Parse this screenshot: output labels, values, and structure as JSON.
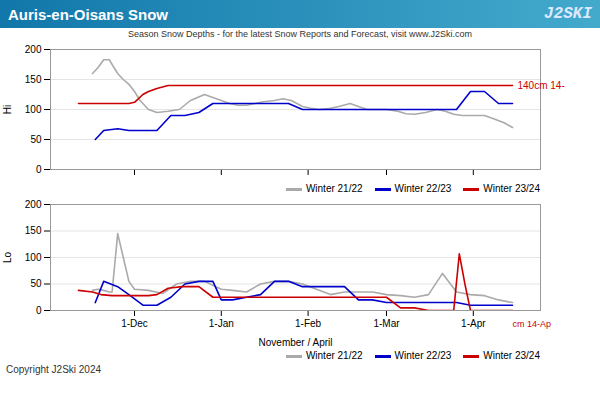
{
  "chart_data": [
    {
      "type": "line",
      "title": "Auris-en-Oisans Snow",
      "subtitle": "Season Snow Depths - for the latest Snow Reports and Forecast, visit www.J2Ski.com",
      "ylabel": "Hi",
      "annotations": [
        "140cm 14-",
        "J2SKI"
      ],
      "xlim": [
        0,
        175
      ],
      "xticks": [
        {
          "value": 30,
          "label": "1-Dec"
        },
        {
          "value": 61,
          "label": "1-Jan"
        },
        {
          "value": 92,
          "label": "1-Feb"
        },
        {
          "value": 120,
          "label": "1-Mar"
        },
        {
          "value": 151,
          "label": "1-Apr"
        }
      ],
      "ylim": [
        0,
        200
      ],
      "yticks": [
        0,
        50,
        100,
        150,
        200
      ],
      "grid": true,
      "legend": "lower right",
      "tick_labels": "y",
      "series": [
        {
          "name": "Winter 21/22",
          "color": "#aaaaaa",
          "x": [
            15,
            17,
            19,
            21,
            22,
            24,
            26,
            28,
            30,
            32,
            35,
            38,
            42,
            46,
            50,
            55,
            58,
            61,
            64,
            67,
            70,
            73,
            76,
            80,
            83,
            86,
            90,
            93,
            96,
            100,
            103,
            107,
            110,
            113,
            117,
            120,
            124,
            127,
            130,
            134,
            138,
            141,
            144,
            147,
            151,
            155,
            158,
            162,
            165
          ],
          "values": [
            160,
            170,
            183,
            183,
            175,
            160,
            150,
            142,
            130,
            115,
            100,
            95,
            97,
            100,
            115,
            125,
            120,
            115,
            110,
            107,
            107,
            110,
            113,
            115,
            118,
            115,
            105,
            102,
            100,
            102,
            105,
            110,
            105,
            100,
            100,
            100,
            97,
            93,
            92,
            95,
            100,
            97,
            92,
            90,
            90,
            90,
            85,
            78,
            70
          ]
        },
        {
          "name": "Winter 22/23",
          "color": "#0000cc",
          "x": [
            16,
            19,
            24,
            28,
            33,
            38,
            43,
            48,
            53,
            58,
            61,
            65,
            70,
            75,
            80,
            85,
            90,
            95,
            100,
            105,
            110,
            115,
            120,
            125,
            130,
            135,
            140,
            145,
            150,
            155,
            160,
            165
          ],
          "values": [
            50,
            65,
            68,
            65,
            65,
            65,
            90,
            90,
            95,
            110,
            110,
            110,
            110,
            110,
            110,
            110,
            100,
            100,
            100,
            100,
            100,
            100,
            100,
            100,
            100,
            100,
            100,
            100,
            130,
            130,
            110,
            110
          ]
        },
        {
          "name": "Winter 23/24",
          "color": "#cc0000",
          "x": [
            10,
            15,
            20,
            25,
            28,
            30,
            33,
            35,
            38,
            42,
            47,
            53,
            58,
            61,
            65,
            70,
            75,
            80,
            85,
            90,
            95,
            100,
            105,
            110,
            115,
            120,
            125,
            130,
            135,
            140,
            145,
            151,
            155,
            160,
            165
          ],
          "values": [
            110,
            110,
            110,
            110,
            110,
            112,
            125,
            130,
            135,
            140,
            140,
            140,
            140,
            140,
            140,
            140,
            140,
            140,
            140,
            140,
            140,
            140,
            140,
            140,
            140,
            140,
            140,
            140,
            140,
            140,
            140,
            140,
            140,
            140,
            140
          ]
        }
      ]
    },
    {
      "type": "line",
      "xlabel": "November / April",
      "ylabel": "Lo",
      "annotations": [
        "cm 14-Ap",
        "Copyright J2Ski 2024"
      ],
      "xlim": [
        0,
        175
      ],
      "xticks": [
        {
          "value": 30,
          "label": "1-Dec"
        },
        {
          "value": 61,
          "label": "1-Jan"
        },
        {
          "value": 92,
          "label": "1-Feb"
        },
        {
          "value": 120,
          "label": "1-Mar"
        },
        {
          "value": 151,
          "label": "1-Apr"
        }
      ],
      "ylim": [
        0,
        200
      ],
      "yticks": [
        0,
        50,
        100,
        150,
        200
      ],
      "grid": true,
      "legend": "lower right",
      "series": [
        {
          "name": "Winter 21/22",
          "color": "#aaaaaa",
          "x": [
            15,
            17,
            19,
            21,
            22,
            24,
            26,
            28,
            30,
            35,
            40,
            45,
            50,
            55,
            61,
            65,
            70,
            75,
            80,
            85,
            90,
            95,
            100,
            105,
            110,
            115,
            120,
            125,
            130,
            135,
            140,
            145,
            150,
            155,
            160,
            165
          ],
          "values": [
            38,
            40,
            38,
            35,
            35,
            145,
            100,
            55,
            40,
            38,
            32,
            50,
            55,
            55,
            40,
            38,
            35,
            50,
            55,
            55,
            50,
            40,
            30,
            35,
            35,
            35,
            30,
            28,
            25,
            30,
            70,
            35,
            30,
            28,
            20,
            15
          ]
        },
        {
          "name": "Winter 22/23",
          "color": "#0000cc",
          "x": [
            16,
            19,
            24,
            28,
            33,
            38,
            43,
            48,
            53,
            58,
            61,
            65,
            70,
            75,
            80,
            85,
            90,
            95,
            100,
            105,
            110,
            115,
            120,
            125,
            130,
            135,
            140,
            145,
            150,
            155,
            160,
            165
          ],
          "values": [
            15,
            55,
            45,
            30,
            10,
            10,
            25,
            50,
            55,
            55,
            20,
            20,
            25,
            30,
            55,
            55,
            45,
            45,
            45,
            45,
            20,
            20,
            15,
            15,
            15,
            15,
            15,
            15,
            10,
            10,
            10,
            10
          ]
        },
        {
          "name": "Winter 23/24",
          "color": "#cc0000",
          "x": [
            10,
            15,
            18,
            22,
            25,
            28,
            32,
            35,
            38,
            42,
            47,
            53,
            58,
            61,
            65,
            70,
            75,
            80,
            85,
            90,
            95,
            100,
            105,
            110,
            115,
            120,
            125,
            130,
            135,
            140,
            144,
            146,
            148,
            150,
            152,
            154,
            156,
            158,
            160,
            162,
            165
          ],
          "values": [
            38,
            35,
            30,
            28,
            28,
            28,
            28,
            28,
            30,
            42,
            45,
            45,
            25,
            25,
            25,
            25,
            25,
            25,
            25,
            25,
            25,
            25,
            25,
            25,
            25,
            25,
            5,
            5,
            0,
            0,
            0,
            107,
            50,
            0,
            0,
            0,
            0,
            0,
            0,
            0,
            0
          ]
        }
      ]
    }
  ]
}
